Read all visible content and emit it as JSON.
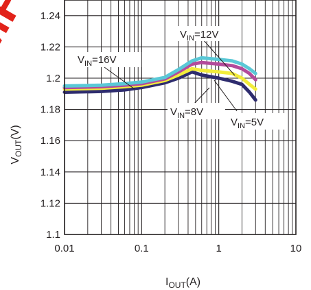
{
  "chart_data": {
    "type": "line",
    "title": "",
    "xlabel": {
      "main": "I",
      "sub": "OUT",
      "unit": "(A)"
    },
    "ylabel": {
      "main": "V",
      "sub": "OUT",
      "unit": "(V)"
    },
    "xscale": "log",
    "xlim": [
      0.01,
      10
    ],
    "ylim": [
      1.1,
      1.25
    ],
    "xticks": [
      {
        "value": 0.01,
        "label": "0.01"
      },
      {
        "value": 0.1,
        "label": "0.1"
      },
      {
        "value": 1,
        "label": "1"
      },
      {
        "value": 10,
        "label": "10"
      }
    ],
    "yticks": [
      {
        "value": 1.1,
        "label": "1.1"
      },
      {
        "value": 1.12,
        "label": "1.12"
      },
      {
        "value": 1.14,
        "label": "1.14"
      },
      {
        "value": 1.16,
        "label": "1.16"
      },
      {
        "value": 1.18,
        "label": "1.18"
      },
      {
        "value": 1.2,
        "label": "1.2"
      },
      {
        "value": 1.22,
        "label": "1.22"
      },
      {
        "value": 1.24,
        "label": "1.24"
      }
    ],
    "grid": true,
    "series": [
      {
        "name": "VIN=5V",
        "color": "#2e2c6e",
        "x": [
          0.01,
          0.03,
          0.06,
          0.1,
          0.2,
          0.3,
          0.45,
          0.6,
          1.0,
          1.5,
          2.0,
          2.5,
          3.0
        ],
        "y": [
          1.191,
          1.1915,
          1.1925,
          1.194,
          1.197,
          1.2,
          1.204,
          1.202,
          1.2,
          1.198,
          1.196,
          1.191,
          1.186
        ]
      },
      {
        "name": "VIN=8V",
        "color": "#f2ec3b",
        "x": [
          0.01,
          0.03,
          0.06,
          0.1,
          0.2,
          0.3,
          0.45,
          0.6,
          1.0,
          1.5,
          2.0,
          2.5,
          3.0
        ],
        "y": [
          1.193,
          1.1935,
          1.1945,
          1.1955,
          1.1985,
          1.202,
          1.206,
          1.205,
          1.204,
          1.203,
          1.2,
          1.196,
          1.193
        ]
      },
      {
        "name": "VIN=12V",
        "color": "#b34a9b",
        "x": [
          0.01,
          0.03,
          0.06,
          0.1,
          0.2,
          0.3,
          0.45,
          0.6,
          1.0,
          1.5,
          2.0,
          2.5,
          3.0
        ],
        "y": [
          1.194,
          1.1945,
          1.1955,
          1.1965,
          1.1995,
          1.204,
          1.209,
          1.21,
          1.209,
          1.208,
          1.206,
          1.203,
          1.199
        ]
      },
      {
        "name": "VIN=16V",
        "color": "#5ac8d6",
        "x": [
          0.01,
          0.03,
          0.06,
          0.1,
          0.2,
          0.3,
          0.45,
          0.6,
          1.0,
          1.5,
          2.0,
          2.5,
          3.0
        ],
        "y": [
          1.195,
          1.1955,
          1.1965,
          1.1975,
          1.2005,
          1.2055,
          1.211,
          1.213,
          1.212,
          1.211,
          1.209,
          1.206,
          1.203
        ]
      }
    ],
    "annotations": [
      {
        "main": "V",
        "sub": "IN",
        "rest": "=12V"
      },
      {
        "main": "V",
        "sub": "IN",
        "rest": "=16V"
      },
      {
        "main": "V",
        "sub": "IN",
        "rest": "=8V"
      },
      {
        "main": "V",
        "sub": "IN",
        "rest": "=5V"
      }
    ]
  }
}
